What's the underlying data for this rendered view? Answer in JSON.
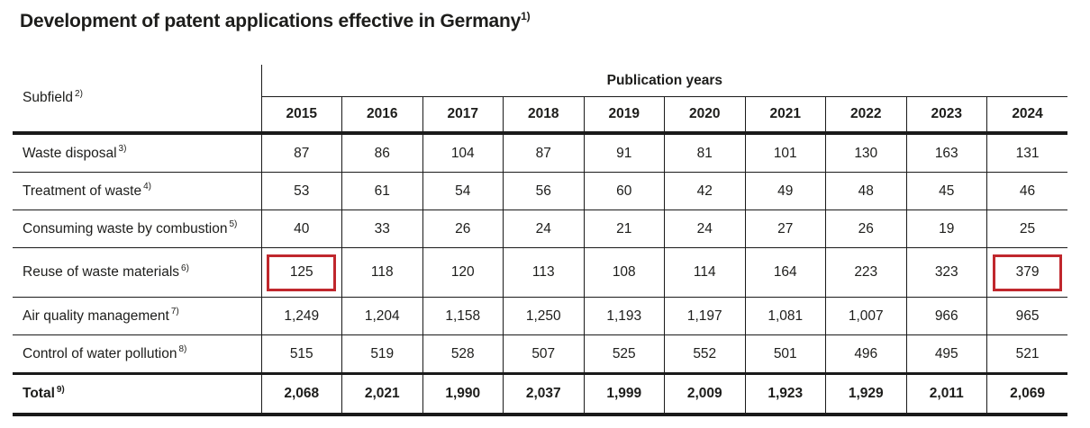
{
  "page": {
    "background": "#ffffff",
    "text_color": "#1d1d1b",
    "line_color": "#1a1a1a",
    "highlight_color": "#c0272d"
  },
  "title": {
    "text": "Development of patent applications effective in Germany",
    "footnote": "1)"
  },
  "table": {
    "subfield_header": {
      "label": "Subfield",
      "footnote": "2)"
    },
    "years_group_header": "Publication years",
    "years": [
      "2015",
      "2016",
      "2017",
      "2018",
      "2019",
      "2020",
      "2021",
      "2022",
      "2023",
      "2024"
    ],
    "rows": [
      {
        "label": "Waste disposal",
        "footnote": "3)",
        "values": [
          "87",
          "86",
          "104",
          "87",
          "91",
          "81",
          "101",
          "130",
          "163",
          "131"
        ]
      },
      {
        "label": "Treatment of waste",
        "footnote": "4)",
        "values": [
          "53",
          "61",
          "54",
          "56",
          "60",
          "42",
          "49",
          "48",
          "45",
          "46"
        ]
      },
      {
        "label": "Consuming waste by combustion",
        "footnote": "5)",
        "values": [
          "40",
          "33",
          "26",
          "24",
          "21",
          "24",
          "27",
          "26",
          "19",
          "25"
        ]
      },
      {
        "label": "Reuse of waste materials",
        "footnote": "6)",
        "values": [
          "125",
          "118",
          "120",
          "113",
          "108",
          "114",
          "164",
          "223",
          "323",
          "379"
        ]
      },
      {
        "label": "Air quality management",
        "footnote": "7)",
        "values": [
          "1,249",
          "1,204",
          "1,158",
          "1,250",
          "1,193",
          "1,197",
          "1,081",
          "1,007",
          "966",
          "965"
        ]
      },
      {
        "label": "Control of water pollution",
        "footnote": "8)",
        "values": [
          "515",
          "519",
          "528",
          "507",
          "525",
          "552",
          "501",
          "496",
          "495",
          "521"
        ]
      }
    ],
    "total": {
      "label": "Total",
      "footnote": "9)",
      "values": [
        "2,068",
        "2,021",
        "1,990",
        "2,037",
        "1,999",
        "2,009",
        "1,923",
        "1,929",
        "2,011",
        "2,069"
      ]
    }
  },
  "chart_data": {
    "type": "table",
    "title": "Development of patent applications effective in Germany",
    "column_group_label": "Publication years",
    "row_header_label": "Subfield",
    "categories": [
      2015,
      2016,
      2017,
      2018,
      2019,
      2020,
      2021,
      2022,
      2023,
      2024
    ],
    "series": [
      {
        "name": "Waste disposal",
        "values": [
          87,
          86,
          104,
          87,
          91,
          81,
          101,
          130,
          163,
          131
        ]
      },
      {
        "name": "Treatment of waste",
        "values": [
          53,
          61,
          54,
          56,
          60,
          42,
          49,
          48,
          45,
          46
        ]
      },
      {
        "name": "Consuming waste by combustion",
        "values": [
          40,
          33,
          26,
          24,
          21,
          24,
          27,
          26,
          19,
          25
        ]
      },
      {
        "name": "Reuse of waste materials",
        "values": [
          125,
          118,
          120,
          113,
          108,
          114,
          164,
          223,
          323,
          379
        ]
      },
      {
        "name": "Air quality management",
        "values": [
          1249,
          1204,
          1158,
          1250,
          1193,
          1197,
          1081,
          1007,
          966,
          965
        ]
      },
      {
        "name": "Control of water pollution",
        "values": [
          515,
          519,
          528,
          507,
          525,
          552,
          501,
          496,
          495,
          521
        ]
      },
      {
        "name": "Total",
        "values": [
          2068,
          2021,
          1990,
          2037,
          1999,
          2009,
          1923,
          1929,
          2011,
          2069
        ]
      }
    ],
    "highlighted_cells": [
      {
        "series": "Reuse of waste materials",
        "category": 2015,
        "value": 125
      },
      {
        "series": "Reuse of waste materials",
        "category": 2024,
        "value": 379
      }
    ]
  }
}
